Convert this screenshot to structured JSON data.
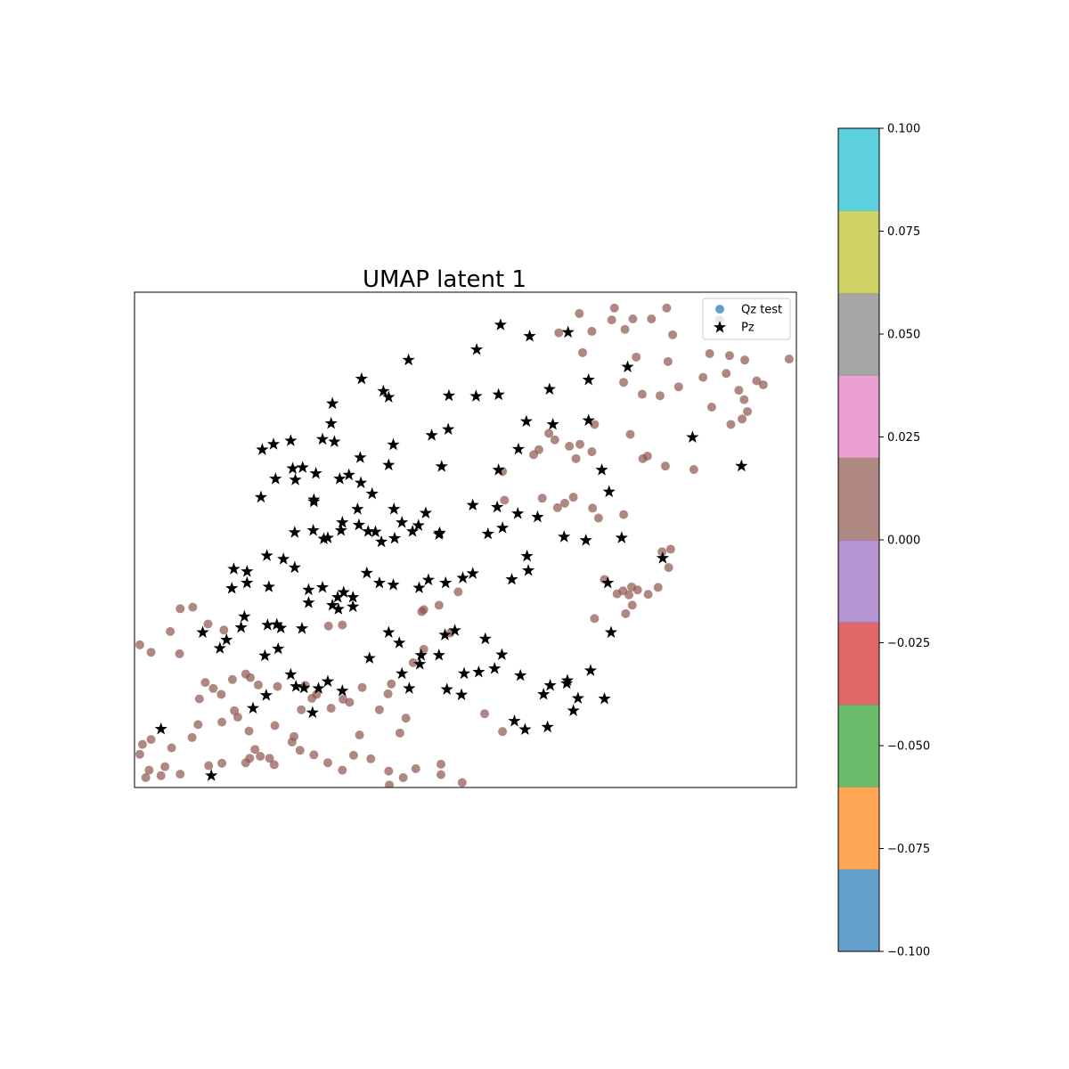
{
  "chart_data": {
    "type": "scatter",
    "title": "UMAP latent 1",
    "xlabel": "",
    "ylabel": "",
    "xlim": [
      0,
      100
    ],
    "ylim": [
      0,
      100
    ],
    "grid": false,
    "axis_ticks": false,
    "legend": {
      "placement": "top-right",
      "entries": [
        {
          "label": "Qz test",
          "marker": "circle",
          "color": "#1f77b4"
        },
        {
          "label": "Pz",
          "marker": "star",
          "color": "#000000"
        }
      ]
    },
    "colorbar": {
      "range": [
        -0.1,
        0.1
      ],
      "tick_labels": [
        "0.100",
        "0.075",
        "0.050",
        "0.025",
        "0.000",
        "−0.025",
        "−0.050",
        "−0.075",
        "−0.100"
      ],
      "tick_values": [
        0.1,
        0.075,
        0.05,
        0.025,
        0.0,
        -0.025,
        -0.05,
        -0.075,
        -0.1
      ],
      "bands": [
        "#1f77b4",
        "#ff7f0e",
        "#2ca02c",
        "#d62728",
        "#9467bd",
        "#8c564b",
        "#e377c2",
        "#7f7f7f",
        "#bcbd22",
        "#17becf"
      ],
      "alpha": 0.7
    },
    "series": [
      {
        "name": "Qz test",
        "marker": "circle",
        "color": "#8c564b",
        "alpha": 0.7,
        "points": [
          [
            67.2,
            95.7
          ],
          [
            72.5,
            96.8
          ],
          [
            80.4,
            96.8
          ],
          [
            72.1,
            94.4
          ],
          [
            75.3,
            94.6
          ],
          [
            78.1,
            94.6
          ],
          [
            69.1,
            92.1
          ],
          [
            64.1,
            91.8
          ],
          [
            74.1,
            92.5
          ],
          [
            81.3,
            91.4
          ],
          [
            88.4,
            94.4
          ],
          [
            67.7,
            87.8
          ],
          [
            75.8,
            86.9
          ],
          [
            80.6,
            86.0
          ],
          [
            86.9,
            87.6
          ],
          [
            89.9,
            87.2
          ],
          [
            92.2,
            86.3
          ],
          [
            98.9,
            86.5
          ],
          [
            82.2,
            80.9
          ],
          [
            91.3,
            80.2
          ],
          [
            94.0,
            82.1
          ],
          [
            95.0,
            81.3
          ],
          [
            85.9,
            82.8
          ],
          [
            89.4,
            83.6
          ],
          [
            92.1,
            78.3
          ],
          [
            87.2,
            76.8
          ],
          [
            90.1,
            73.3
          ],
          [
            91.8,
            74.4
          ],
          [
            92.6,
            75.9
          ],
          [
            76.7,
            79.4
          ],
          [
            79.4,
            79.1
          ],
          [
            73.9,
            81.8
          ],
          [
            69.5,
            73.3
          ],
          [
            74.9,
            71.3
          ],
          [
            77.5,
            66.9
          ],
          [
            76.8,
            66.4
          ],
          [
            80.2,
            64.9
          ],
          [
            84.5,
            64.2
          ],
          [
            66.7,
            66.4
          ],
          [
            69.1,
            67.8
          ],
          [
            67.3,
            69.3
          ],
          [
            65.7,
            68.9
          ],
          [
            60.3,
            67.2
          ],
          [
            61.1,
            68.2
          ],
          [
            62.6,
            71.5
          ],
          [
            63.5,
            70.2
          ],
          [
            55.6,
            63.8
          ],
          [
            55.9,
            58.0
          ],
          [
            61.6,
            58.4
          ],
          [
            63.9,
            56.5
          ],
          [
            65.0,
            57.4
          ],
          [
            66.3,
            58.6
          ],
          [
            69.2,
            56.4
          ],
          [
            70.1,
            54.4
          ],
          [
            73.9,
            55.1
          ],
          [
            81.0,
            48.1
          ],
          [
            79.7,
            47.6
          ],
          [
            80.7,
            44.4
          ],
          [
            71.0,
            42.0
          ],
          [
            79.1,
            40.4
          ],
          [
            75.1,
            40.5
          ],
          [
            73.8,
            39.7
          ],
          [
            74.7,
            38.9
          ],
          [
            76.0,
            39.9
          ],
          [
            72.9,
            39.1
          ],
          [
            77.6,
            39.0
          ],
          [
            75.2,
            36.8
          ],
          [
            74.2,
            35.1
          ],
          [
            69.5,
            34.1
          ],
          [
            46.0,
            36.8
          ],
          [
            48.9,
            39.5
          ],
          [
            43.7,
            35.9
          ],
          [
            43.4,
            35.5
          ],
          [
            47.7,
            31.2
          ],
          [
            43.7,
            27.9
          ],
          [
            42.1,
            25.2
          ],
          [
            29.3,
            32.6
          ],
          [
            31.4,
            32.8
          ],
          [
            25.8,
            20.6
          ],
          [
            34.4,
            20.2
          ],
          [
            38.3,
            18.9
          ],
          [
            38.8,
            20.9
          ],
          [
            52.9,
            14.9
          ],
          [
            55.6,
            11.3
          ],
          [
            34.0,
            10.6
          ],
          [
            40.1,
            11.0
          ],
          [
            41.0,
            14.0
          ],
          [
            37.0,
            15.7
          ],
          [
            32.5,
            17.2
          ],
          [
            27.5,
            18.8
          ],
          [
            26.8,
            18.0
          ],
          [
            31.5,
            17.8
          ],
          [
            29.7,
            16.0
          ],
          [
            25.2,
            15.7
          ],
          [
            21.2,
            12.5
          ],
          [
            24.1,
            10.3
          ],
          [
            23.8,
            9.2
          ],
          [
            25.0,
            7.5
          ],
          [
            27.1,
            6.6
          ],
          [
            29.2,
            5.0
          ],
          [
            31.4,
            3.5
          ],
          [
            33.1,
            6.5
          ],
          [
            35.7,
            5.8
          ],
          [
            38.4,
            3.3
          ],
          [
            40.6,
            2.0
          ],
          [
            42.5,
            3.8
          ],
          [
            46.3,
            2.6
          ],
          [
            46.3,
            4.7
          ],
          [
            49.5,
            1.0
          ],
          [
            38.5,
            0.5
          ],
          [
            16.8,
            5.0
          ],
          [
            17.4,
            5.9
          ],
          [
            18.2,
            7.7
          ],
          [
            19.0,
            6.3
          ],
          [
            20.4,
            5.9
          ],
          [
            21.1,
            4.6
          ],
          [
            13.2,
            4.9
          ],
          [
            11.2,
            4.4
          ],
          [
            6.9,
            2.7
          ],
          [
            4.6,
            4.2
          ],
          [
            2.2,
            3.5
          ],
          [
            1.7,
            2.0
          ],
          [
            4.0,
            2.4
          ],
          [
            0.8,
            6.7
          ],
          [
            1.2,
            8.7
          ],
          [
            2.5,
            9.7
          ],
          [
            5.6,
            8.0
          ],
          [
            8.7,
            10.1
          ],
          [
            9.6,
            12.7
          ],
          [
            13.2,
            13.2
          ],
          [
            15.6,
            14.2
          ],
          [
            17.3,
            11.4
          ],
          [
            9.8,
            17.9
          ],
          [
            10.7,
            21.2
          ],
          [
            11.9,
            20.0
          ],
          [
            13.1,
            18.8
          ],
          [
            15.1,
            15.5
          ],
          [
            14.8,
            21.8
          ],
          [
            16.8,
            22.9
          ],
          [
            17.5,
            22.2
          ],
          [
            18.7,
            20.7
          ],
          [
            21.6,
            20.4
          ],
          [
            0.8,
            28.8
          ],
          [
            2.5,
            27.3
          ],
          [
            5.4,
            31.5
          ],
          [
            6.8,
            27.0
          ],
          [
            6.9,
            36.1
          ],
          [
            8.8,
            36.4
          ],
          [
            11.1,
            33.0
          ],
          [
            13.5,
            31.8
          ]
        ]
      },
      {
        "name": "Pz",
        "marker": "star",
        "color": "#000000",
        "alpha": 1,
        "points": [
          [
            34.3,
            82.5
          ],
          [
            41.4,
            86.3
          ],
          [
            51.7,
            88.4
          ],
          [
            55.3,
            93.4
          ],
          [
            59.7,
            91.1
          ],
          [
            65.5,
            91.9
          ],
          [
            74.5,
            84.9
          ],
          [
            68.6,
            82.3
          ],
          [
            29.9,
            77.5
          ],
          [
            29.7,
            73.5
          ],
          [
            37.6,
            80.0
          ],
          [
            38.4,
            78.8
          ],
          [
            47.5,
            79.1
          ],
          [
            51.6,
            79.0
          ],
          [
            55.0,
            79.3
          ],
          [
            59.2,
            73.9
          ],
          [
            47.4,
            72.3
          ],
          [
            44.9,
            71.1
          ],
          [
            39.1,
            69.2
          ],
          [
            34.1,
            66.6
          ],
          [
            30.2,
            69.8
          ],
          [
            28.4,
            70.3
          ],
          [
            23.6,
            70.0
          ],
          [
            21.0,
            69.3
          ],
          [
            19.3,
            68.2
          ],
          [
            23.9,
            64.4
          ],
          [
            27.4,
            63.4
          ],
          [
            31.0,
            62.3
          ],
          [
            32.4,
            63.1
          ],
          [
            38.4,
            65.1
          ],
          [
            46.4,
            64.8
          ],
          [
            55.0,
            64.1
          ],
          [
            70.6,
            64.1
          ],
          [
            71.7,
            59.7
          ],
          [
            60.9,
            54.6
          ],
          [
            54.8,
            56.6
          ],
          [
            51.1,
            57.0
          ],
          [
            57.9,
            55.3
          ],
          [
            53.4,
            51.2
          ],
          [
            55.6,
            52.4
          ],
          [
            46.1,
            51.4
          ],
          [
            42.9,
            52.9
          ],
          [
            39.2,
            56.2
          ],
          [
            35.9,
            59.3
          ],
          [
            34.2,
            61.5
          ],
          [
            27.1,
            57.7
          ],
          [
            25.4,
            64.6
          ],
          [
            24.3,
            62.1
          ],
          [
            21.3,
            62.3
          ],
          [
            19.1,
            58.6
          ],
          [
            27.1,
            58.1
          ],
          [
            27.0,
            51.9
          ],
          [
            29.2,
            50.4
          ],
          [
            31.2,
            51.9
          ],
          [
            33.7,
            56.2
          ],
          [
            35.3,
            51.7
          ],
          [
            37.3,
            49.6
          ],
          [
            39.3,
            50.3
          ],
          [
            40.4,
            53.5
          ],
          [
            46.0,
            51.1
          ],
          [
            59.3,
            46.7
          ],
          [
            64.9,
            50.6
          ],
          [
            68.2,
            49.9
          ],
          [
            73.6,
            50.4
          ],
          [
            79.8,
            46.3
          ],
          [
            59.5,
            43.8
          ],
          [
            57.0,
            42.0
          ],
          [
            51.1,
            43.2
          ],
          [
            49.6,
            42.3
          ],
          [
            47.0,
            41.3
          ],
          [
            44.4,
            41.9
          ],
          [
            43.0,
            40.3
          ],
          [
            39.1,
            40.9
          ],
          [
            37.0,
            41.3
          ],
          [
            35.1,
            43.3
          ],
          [
            33.0,
            38.4
          ],
          [
            31.6,
            39.4
          ],
          [
            28.4,
            40.4
          ],
          [
            26.3,
            39.9
          ],
          [
            24.2,
            44.4
          ],
          [
            22.5,
            46.1
          ],
          [
            20.3,
            40.5
          ],
          [
            17.0,
            43.6
          ],
          [
            15.0,
            44.1
          ],
          [
            22.1,
            32.2
          ],
          [
            26.3,
            37.3
          ],
          [
            29.9,
            36.8
          ],
          [
            30.8,
            36.0
          ],
          [
            38.4,
            31.3
          ],
          [
            40.0,
            29.2
          ],
          [
            43.3,
            26.7
          ],
          [
            40.4,
            23.0
          ],
          [
            41.5,
            20.0
          ],
          [
            46.0,
            26.7
          ],
          [
            49.8,
            23.0
          ],
          [
            52.0,
            23.3
          ],
          [
            54.4,
            24.0
          ],
          [
            55.5,
            26.8
          ],
          [
            58.3,
            22.6
          ],
          [
            61.8,
            18.8
          ],
          [
            62.8,
            20.6
          ],
          [
            65.4,
            21.6
          ],
          [
            67.0,
            18.0
          ],
          [
            66.3,
            15.5
          ],
          [
            71.0,
            17.9
          ],
          [
            72.0,
            31.3
          ],
          [
            53.0,
            30.0
          ],
          [
            48.4,
            31.7
          ],
          [
            46.9,
            30.8
          ],
          [
            43.1,
            24.9
          ],
          [
            57.4,
            13.4
          ],
          [
            59.0,
            11.7
          ],
          [
            62.4,
            12.2
          ],
          [
            65.3,
            21.0
          ],
          [
            49.4,
            18.7
          ],
          [
            47.2,
            19.8
          ],
          [
            35.5,
            26.1
          ],
          [
            29.2,
            21.4
          ],
          [
            24.4,
            20.4
          ],
          [
            23.6,
            22.8
          ],
          [
            19.9,
            18.6
          ],
          [
            13.9,
            29.8
          ],
          [
            14.7,
            40.2
          ],
          [
            16.6,
            34.5
          ],
          [
            16.1,
            32.3
          ],
          [
            20.1,
            32.8
          ],
          [
            19.7,
            26.6
          ],
          [
            12.9,
            28.1
          ],
          [
            10.3,
            31.3
          ],
          [
            17.9,
            16.0
          ],
          [
            11.6,
            2.4
          ],
          [
            4.0,
            11.8
          ],
          [
            31.4,
            19.5
          ],
          [
            21.5,
            32.9
          ],
          [
            26.9,
            15.1
          ],
          [
            27.8,
            20.0
          ],
          [
            25.6,
            20.1
          ],
          [
            21.7,
            28.0
          ],
          [
            25.3,
            32.1
          ],
          [
            33.0,
            36.5
          ],
          [
            30.7,
            38.4
          ],
          [
            17.0,
            41.3
          ],
          [
            20.0,
            46.8
          ],
          [
            24.2,
            51.5
          ],
          [
            28.6,
            50.2
          ],
          [
            31.4,
            53.5
          ],
          [
            33.9,
            53.0
          ],
          [
            36.4,
            51.6
          ],
          [
            42.0,
            51.7
          ],
          [
            44.0,
            55.4
          ],
          [
            58.0,
            68.3
          ],
          [
            63.2,
            73.3
          ],
          [
            62.7,
            80.4
          ],
          [
            68.6,
            74.1
          ],
          [
            84.3,
            70.7
          ],
          [
            91.7,
            64.9
          ],
          [
            71.5,
            41.3
          ],
          [
            68.9,
            23.6
          ]
        ]
      }
    ]
  }
}
